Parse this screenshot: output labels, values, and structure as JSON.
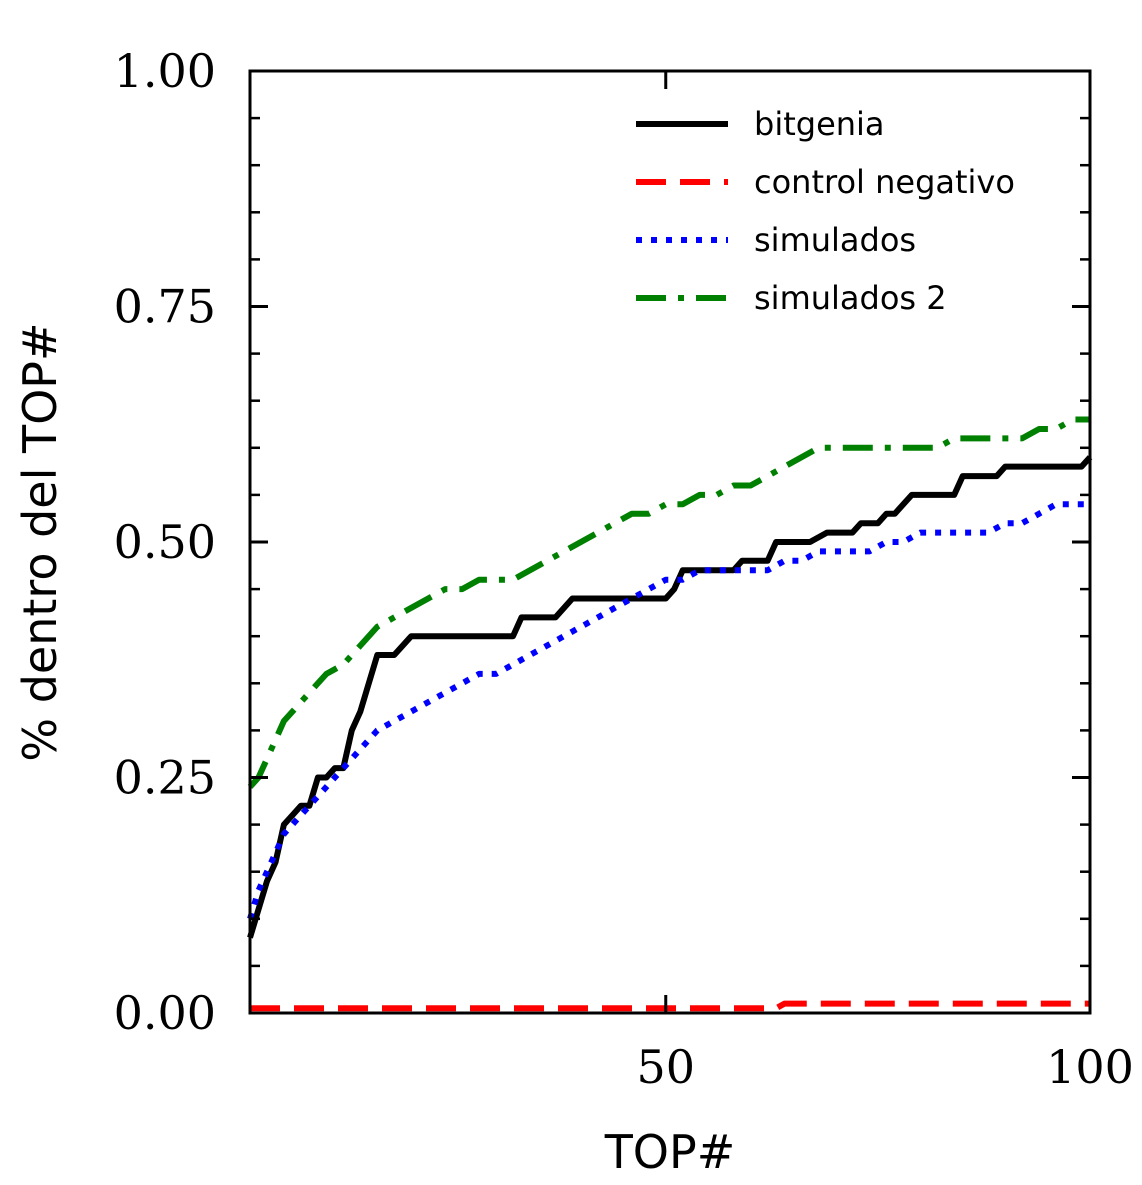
{
  "chart_data": {
    "type": "line",
    "xlabel": "TOP#",
    "ylabel": "% dentro del TOP#",
    "xlim": [
      1,
      100
    ],
    "ylim": [
      0,
      1
    ],
    "xticks": [
      50,
      100
    ],
    "yticks": [
      0,
      0.25,
      0.5,
      0.75,
      1.0
    ],
    "ytick_labels": [
      "0.00",
      "0.25",
      "0.50",
      "0.75",
      "1.00"
    ],
    "xtick_labels": [
      "50",
      "100"
    ],
    "grid": false,
    "legend_position": "top-right",
    "series": [
      {
        "name": "bitgenia",
        "color": "#000000",
        "style": "solid",
        "x": [
          1,
          2,
          3,
          4,
          5,
          6,
          7,
          8,
          9,
          10,
          11,
          12,
          13,
          14,
          15,
          16,
          17,
          18,
          19,
          20,
          22,
          24,
          26,
          28,
          30,
          32,
          33,
          34,
          35,
          37,
          39,
          40,
          42,
          44,
          46,
          48,
          50,
          51,
          52,
          54,
          56,
          58,
          59,
          60,
          62,
          63,
          64,
          66,
          67,
          69,
          70,
          72,
          73,
          75,
          76,
          77,
          79,
          80,
          82,
          84,
          85,
          87,
          89,
          90,
          92,
          94,
          96,
          99,
          100
        ],
        "y": [
          0.08,
          0.11,
          0.14,
          0.16,
          0.2,
          0.21,
          0.22,
          0.22,
          0.25,
          0.25,
          0.26,
          0.26,
          0.3,
          0.32,
          0.35,
          0.38,
          0.38,
          0.38,
          0.39,
          0.4,
          0.4,
          0.4,
          0.4,
          0.4,
          0.4,
          0.4,
          0.42,
          0.42,
          0.42,
          0.42,
          0.44,
          0.44,
          0.44,
          0.44,
          0.44,
          0.44,
          0.44,
          0.45,
          0.47,
          0.47,
          0.47,
          0.47,
          0.48,
          0.48,
          0.48,
          0.5,
          0.5,
          0.5,
          0.5,
          0.51,
          0.51,
          0.51,
          0.52,
          0.52,
          0.53,
          0.53,
          0.55,
          0.55,
          0.55,
          0.55,
          0.57,
          0.57,
          0.57,
          0.58,
          0.58,
          0.58,
          0.58,
          0.58,
          0.59
        ]
      },
      {
        "name": "control negativo",
        "color": "#ff0000",
        "style": "dashed",
        "x": [
          1,
          10,
          20,
          30,
          40,
          50,
          60,
          63,
          64,
          66,
          70,
          80,
          90,
          100
        ],
        "y": [
          0.005,
          0.005,
          0.005,
          0.005,
          0.005,
          0.005,
          0.005,
          0.005,
          0.01,
          0.01,
          0.01,
          0.01,
          0.01,
          0.01
        ]
      },
      {
        "name": "simulados",
        "color": "#0000ff",
        "style": "dotted",
        "x": [
          1,
          2,
          3,
          4,
          5,
          6,
          7,
          8,
          9,
          10,
          11,
          12,
          13,
          14,
          15,
          16,
          18,
          20,
          22,
          24,
          26,
          28,
          30,
          32,
          34,
          36,
          38,
          40,
          42,
          44,
          46,
          48,
          50,
          52,
          54,
          56,
          58,
          60,
          62,
          64,
          66,
          68,
          70,
          72,
          74,
          76,
          78,
          80,
          82,
          84,
          86,
          88,
          90,
          92,
          94,
          96,
          98,
          100
        ],
        "y": [
          0.1,
          0.13,
          0.15,
          0.17,
          0.19,
          0.2,
          0.21,
          0.22,
          0.23,
          0.24,
          0.25,
          0.26,
          0.27,
          0.28,
          0.29,
          0.3,
          0.31,
          0.32,
          0.33,
          0.34,
          0.35,
          0.36,
          0.36,
          0.37,
          0.38,
          0.39,
          0.4,
          0.41,
          0.42,
          0.43,
          0.44,
          0.45,
          0.46,
          0.46,
          0.47,
          0.47,
          0.47,
          0.47,
          0.47,
          0.48,
          0.48,
          0.49,
          0.49,
          0.49,
          0.49,
          0.5,
          0.5,
          0.51,
          0.51,
          0.51,
          0.51,
          0.51,
          0.52,
          0.52,
          0.53,
          0.54,
          0.54,
          0.54
        ]
      },
      {
        "name": "simulados 2",
        "color": "#008000",
        "style": "dashdot",
        "x": [
          1,
          2,
          3,
          4,
          5,
          6,
          7,
          8,
          9,
          10,
          12,
          14,
          16,
          18,
          20,
          22,
          24,
          26,
          28,
          30,
          32,
          34,
          36,
          38,
          40,
          42,
          44,
          46,
          48,
          50,
          52,
          54,
          56,
          58,
          60,
          62,
          64,
          66,
          68,
          70,
          72,
          74,
          76,
          78,
          80,
          82,
          84,
          86,
          88,
          90,
          92,
          94,
          96,
          98,
          100
        ],
        "y": [
          0.24,
          0.25,
          0.27,
          0.29,
          0.31,
          0.32,
          0.33,
          0.34,
          0.35,
          0.36,
          0.37,
          0.39,
          0.41,
          0.42,
          0.43,
          0.44,
          0.45,
          0.45,
          0.46,
          0.46,
          0.46,
          0.47,
          0.48,
          0.49,
          0.5,
          0.51,
          0.52,
          0.53,
          0.53,
          0.54,
          0.54,
          0.55,
          0.55,
          0.56,
          0.56,
          0.57,
          0.58,
          0.59,
          0.6,
          0.6,
          0.6,
          0.6,
          0.6,
          0.6,
          0.6,
          0.6,
          0.61,
          0.61,
          0.61,
          0.61,
          0.61,
          0.62,
          0.62,
          0.63,
          0.63
        ]
      }
    ]
  }
}
